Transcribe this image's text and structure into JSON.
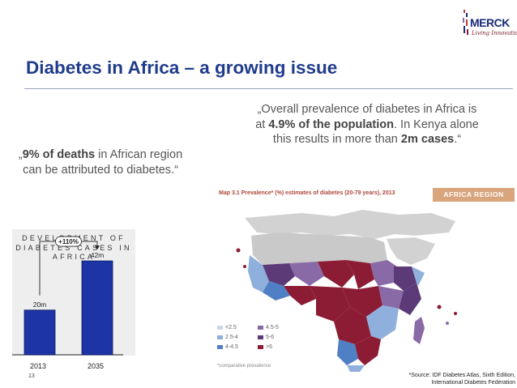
{
  "logo": {
    "name": "MERCK",
    "tagline": "Living Innovation"
  },
  "slide": {
    "title": "Diabetes in Africa – a growing issue",
    "page_number": "13",
    "source_line1": "*Source: IDF Diabetes Atlas, Sixth Edition,",
    "source_line2": "International Diabetes Federation"
  },
  "quote_left": {
    "open": "„",
    "highlight": "9% of deaths",
    "rest": " in African region can be attributed to diabetes.“"
  },
  "quote_right": {
    "part1": "„Overall prevalence of diabetes in Africa is at ",
    "highlight1": "4.9% of the population",
    "part2": ". In Kenya alone this results in more than ",
    "highlight2": "2m cases",
    "part3": ".“"
  },
  "chart_data": {
    "type": "bar",
    "title": "DEVELOPMENT OF DIABETES CASES IN AFRICA",
    "categories": [
      "2013",
      "2035"
    ],
    "values": [
      20,
      42
    ],
    "value_labels": [
      "20m",
      "42m"
    ],
    "annotation": "+110%",
    "ylim": [
      0,
      50
    ],
    "bar_color": "#1c34a6",
    "xlabel": "",
    "ylabel": "",
    "grid": false
  },
  "map": {
    "caption": "Map 3.1  Prevalence* (%) estimates of diabetes (20-79 years), 2013",
    "region_badge": "AFRICA REGION",
    "legend": [
      {
        "label": "<2.5",
        "color": "#c6d6ec"
      },
      {
        "label": "2.5-4",
        "color": "#8fb0dc"
      },
      {
        "label": "4-4.5",
        "color": "#4f7fc4"
      },
      {
        "label": "4.5-5",
        "color": "#8a6aa6"
      },
      {
        "label": "5-6",
        "color": "#5c3a78"
      },
      {
        "label": ">6",
        "color": "#8c1c34"
      }
    ],
    "note": "*comparative prevalence"
  }
}
